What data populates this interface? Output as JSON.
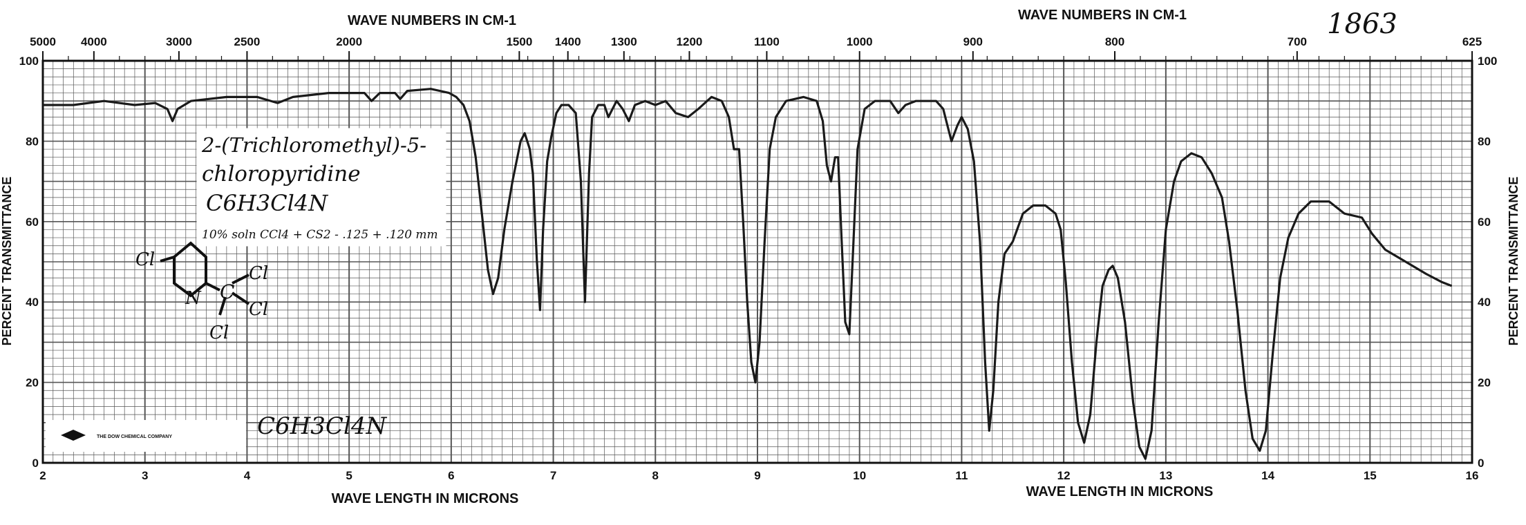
{
  "chart_data": {
    "type": "line",
    "title_top_left": "WAVE NUMBERS IN CM-1",
    "title_top_right": "WAVE NUMBERS IN CM-1",
    "xlabel_left": "WAVE LENGTH IN MICRONS",
    "xlabel_right": "WAVE LENGTH IN MICRONS",
    "ylabel_left": "PERCENT TRANSMITTANCE",
    "ylabel_right": "PERCENT TRANSMITTANCE",
    "xlim": [
      2,
      16
    ],
    "ylim": [
      0,
      100
    ],
    "x_ticks": [
      "2",
      "3",
      "4",
      "5",
      "6",
      "7",
      "8",
      "9",
      "10",
      "11",
      "12",
      "13",
      "14",
      "15",
      "16"
    ],
    "y_ticks_left": [
      "0",
      "20",
      "40",
      "60",
      "80",
      "100"
    ],
    "y_ticks_right": [
      "0",
      "20",
      "40",
      "60",
      "80",
      "100"
    ],
    "wavenumber_ticks": [
      {
        "label": "5000",
        "x": 2.0
      },
      {
        "label": "4000",
        "x": 2.5
      },
      {
        "label": "3000",
        "x": 3.333
      },
      {
        "label": "2500",
        "x": 4.0
      },
      {
        "label": "2000",
        "x": 5.0
      },
      {
        "label": "1500",
        "x": 6.667
      },
      {
        "label": "1400",
        "x": 7.143
      },
      {
        "label": "1300",
        "x": 7.692
      },
      {
        "label": "1200",
        "x": 8.333
      },
      {
        "label": "1100",
        "x": 9.091
      },
      {
        "label": "1000",
        "x": 10.0
      },
      {
        "label": "900",
        "x": 11.111
      },
      {
        "label": "800",
        "x": 12.5
      },
      {
        "label": "700",
        "x": 14.286
      },
      {
        "label": "625",
        "x": 16.0
      }
    ],
    "grid": true,
    "series": [
      {
        "color": "#1a1a1a",
        "points": [
          [
            2.0,
            89
          ],
          [
            2.3,
            89
          ],
          [
            2.6,
            90
          ],
          [
            2.9,
            89
          ],
          [
            3.1,
            89.5
          ],
          [
            3.22,
            88
          ],
          [
            3.27,
            85
          ],
          [
            3.32,
            88
          ],
          [
            3.45,
            90
          ],
          [
            3.8,
            91
          ],
          [
            4.1,
            91
          ],
          [
            4.3,
            89.5
          ],
          [
            4.45,
            91
          ],
          [
            4.8,
            92
          ],
          [
            5.15,
            92
          ],
          [
            5.22,
            90
          ],
          [
            5.3,
            92
          ],
          [
            5.45,
            92
          ],
          [
            5.5,
            90.5
          ],
          [
            5.57,
            92.5
          ],
          [
            5.8,
            93
          ],
          [
            5.98,
            92
          ],
          [
            6.05,
            91
          ],
          [
            6.12,
            89
          ],
          [
            6.18,
            85
          ],
          [
            6.24,
            76
          ],
          [
            6.3,
            62
          ],
          [
            6.36,
            48
          ],
          [
            6.41,
            42
          ],
          [
            6.46,
            46
          ],
          [
            6.52,
            58
          ],
          [
            6.6,
            70
          ],
          [
            6.68,
            80
          ],
          [
            6.72,
            82
          ],
          [
            6.77,
            78
          ],
          [
            6.8,
            72
          ],
          [
            6.84,
            50
          ],
          [
            6.87,
            38
          ],
          [
            6.9,
            58
          ],
          [
            6.94,
            75
          ],
          [
            6.98,
            81
          ],
          [
            7.03,
            87
          ],
          [
            7.08,
            89
          ],
          [
            7.15,
            89
          ],
          [
            7.22,
            87
          ],
          [
            7.27,
            70
          ],
          [
            7.31,
            40
          ],
          [
            7.35,
            72
          ],
          [
            7.38,
            86
          ],
          [
            7.44,
            89
          ],
          [
            7.5,
            89
          ],
          [
            7.54,
            86
          ],
          [
            7.58,
            88
          ],
          [
            7.62,
            90
          ],
          [
            7.68,
            88
          ],
          [
            7.74,
            85
          ],
          [
            7.8,
            89
          ],
          [
            7.9,
            90
          ],
          [
            8.0,
            89
          ],
          [
            8.1,
            90
          ],
          [
            8.2,
            87
          ],
          [
            8.32,
            86
          ],
          [
            8.42,
            88
          ],
          [
            8.55,
            91
          ],
          [
            8.65,
            90
          ],
          [
            8.72,
            86
          ],
          [
            8.77,
            78
          ],
          [
            8.82,
            78
          ],
          [
            8.86,
            60
          ],
          [
            8.9,
            40
          ],
          [
            8.94,
            25
          ],
          [
            8.98,
            20
          ],
          [
            9.02,
            30
          ],
          [
            9.07,
            55
          ],
          [
            9.12,
            78
          ],
          [
            9.18,
            86
          ],
          [
            9.28,
            90
          ],
          [
            9.45,
            91
          ],
          [
            9.58,
            90
          ],
          [
            9.64,
            85
          ],
          [
            9.68,
            74
          ],
          [
            9.72,
            70
          ],
          [
            9.76,
            76
          ],
          [
            9.79,
            76
          ],
          [
            9.82,
            58
          ],
          [
            9.86,
            35
          ],
          [
            9.9,
            32
          ],
          [
            9.94,
            55
          ],
          [
            9.98,
            78
          ],
          [
            10.05,
            88
          ],
          [
            10.15,
            90
          ],
          [
            10.3,
            90
          ],
          [
            10.38,
            87
          ],
          [
            10.45,
            89
          ],
          [
            10.55,
            90
          ],
          [
            10.75,
            90
          ],
          [
            10.82,
            88
          ],
          [
            10.86,
            84
          ],
          [
            10.9,
            80
          ],
          [
            10.96,
            84
          ],
          [
            11.0,
            86
          ],
          [
            11.06,
            83
          ],
          [
            11.12,
            75
          ],
          [
            11.18,
            55
          ],
          [
            11.23,
            25
          ],
          [
            11.27,
            8
          ],
          [
            11.31,
            18
          ],
          [
            11.36,
            40
          ],
          [
            11.42,
            52
          ],
          [
            11.5,
            55
          ],
          [
            11.6,
            62
          ],
          [
            11.7,
            64
          ],
          [
            11.82,
            64
          ],
          [
            11.92,
            62
          ],
          [
            11.97,
            58
          ],
          [
            12.02,
            45
          ],
          [
            12.08,
            25
          ],
          [
            12.14,
            10
          ],
          [
            12.2,
            5
          ],
          [
            12.26,
            12
          ],
          [
            12.32,
            30
          ],
          [
            12.38,
            44
          ],
          [
            12.44,
            48
          ],
          [
            12.48,
            49
          ],
          [
            12.53,
            46
          ],
          [
            12.6,
            35
          ],
          [
            12.68,
            15
          ],
          [
            12.74,
            4
          ],
          [
            12.8,
            1
          ],
          [
            12.86,
            8
          ],
          [
            12.93,
            35
          ],
          [
            13.0,
            58
          ],
          [
            13.08,
            70
          ],
          [
            13.15,
            75
          ],
          [
            13.25,
            77
          ],
          [
            13.35,
            76
          ],
          [
            13.45,
            72
          ],
          [
            13.55,
            66
          ],
          [
            13.62,
            55
          ],
          [
            13.7,
            38
          ],
          [
            13.78,
            18
          ],
          [
            13.85,
            6
          ],
          [
            13.92,
            3
          ],
          [
            13.98,
            8
          ],
          [
            14.05,
            28
          ],
          [
            14.12,
            46
          ],
          [
            14.2,
            56
          ],
          [
            14.3,
            62
          ],
          [
            14.42,
            65
          ],
          [
            14.6,
            65
          ],
          [
            14.75,
            62
          ],
          [
            14.92,
            61
          ],
          [
            15.02,
            57
          ],
          [
            15.15,
            53
          ],
          [
            15.35,
            50
          ],
          [
            15.55,
            47
          ],
          [
            15.7,
            45
          ],
          [
            15.8,
            44
          ]
        ]
      }
    ]
  },
  "annotations": {
    "compound_name_line1": "2-(Trichloromethyl)-5-",
    "compound_name_line2": "chloropyridine",
    "formula": "C6H3Cl4N",
    "conditions": "10% soln CCl4 + CS2 - .125 + .120 mm",
    "footer_formula": "C6H3Cl4N",
    "spectrum_number": "1863",
    "company": "THE DOW CHEMICAL COMPANY",
    "struct_cl_ring": "Cl",
    "struct_n": "N",
    "struct_c": "C",
    "struct_cl_1": "Cl",
    "struct_cl_2": "Cl",
    "struct_cl_3": "Cl"
  }
}
